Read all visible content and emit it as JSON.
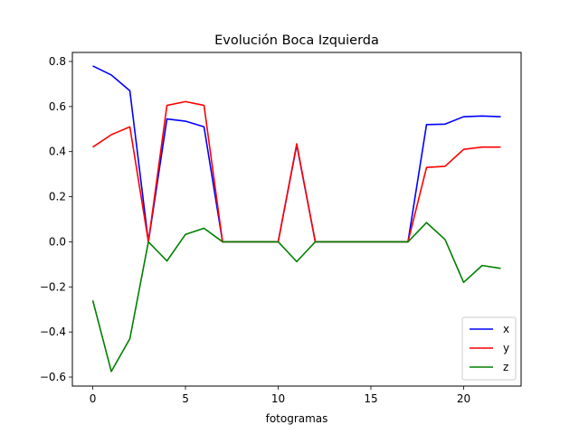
{
  "chart_data": {
    "type": "line",
    "title": "Evolución Boca Izquierda",
    "xlabel": "fotogramas",
    "ylabel": "",
    "xlim": [
      -1.1,
      23.1
    ],
    "ylim": [
      -0.64,
      0.84
    ],
    "xticks": [
      0,
      5,
      10,
      15,
      20
    ],
    "yticks": [
      -0.6,
      -0.4,
      -0.2,
      0.0,
      0.2,
      0.4,
      0.6,
      0.8
    ],
    "xtick_labels": [
      "0",
      "5",
      "10",
      "15",
      "20"
    ],
    "ytick_labels": [
      "−0.6",
      "−0.4",
      "−0.2",
      "0.0",
      "0.2",
      "0.4",
      "0.6",
      "0.8"
    ],
    "grid": false,
    "legend_position": "lower-right",
    "x": [
      0,
      1,
      2,
      3,
      4,
      5,
      6,
      7,
      8,
      9,
      10,
      11,
      12,
      13,
      14,
      15,
      16,
      17,
      18,
      19,
      20,
      21,
      22
    ],
    "series": [
      {
        "name": "x",
        "color": "#0000ff",
        "values": [
          0.78,
          0.74,
          0.67,
          0.0,
          0.545,
          0.535,
          0.51,
          0.0,
          0.0,
          0.0,
          0.0,
          0.43,
          0.0,
          0.0,
          0.0,
          0.0,
          0.0,
          0.0,
          0.52,
          0.522,
          0.555,
          0.558,
          0.555
        ]
      },
      {
        "name": "y",
        "color": "#ff0000",
        "values": [
          0.42,
          0.475,
          0.51,
          0.0,
          0.605,
          0.622,
          0.605,
          0.0,
          0.0,
          0.0,
          0.0,
          0.435,
          0.0,
          0.0,
          0.0,
          0.0,
          0.0,
          0.0,
          0.33,
          0.335,
          0.41,
          0.42,
          0.42
        ]
      },
      {
        "name": "z",
        "color": "#008000",
        "values": [
          -0.26,
          -0.575,
          -0.43,
          0.0,
          -0.085,
          0.033,
          0.06,
          0.0,
          0.0,
          0.0,
          0.0,
          -0.088,
          0.0,
          0.0,
          0.0,
          0.0,
          0.0,
          0.0,
          0.085,
          0.01,
          -0.18,
          -0.105,
          -0.118
        ]
      }
    ]
  }
}
